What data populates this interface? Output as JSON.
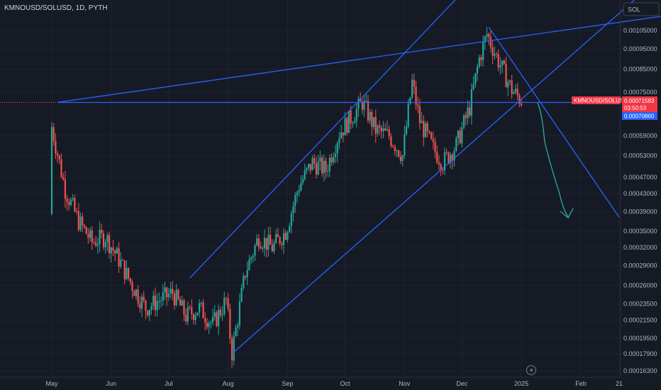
{
  "chart_title": "KMNOUSD/SOLUSD, 1D, PYTH",
  "currency_button": "SOL",
  "price_tag": {
    "symbol": "KMNOUSD/SOLUSD",
    "price": "0.00071583",
    "countdown": "03:50:53",
    "line_value": "0.00070860"
  },
  "x_axis_labels": [
    "May",
    "Jun",
    "Jul",
    "Aug",
    "Sep",
    "Oct",
    "Nov",
    "Dec",
    "2025",
    "Feb",
    "21"
  ],
  "y_axis_labels": [
    "0.00105000",
    "0.00095000",
    "0.00085000",
    "0.00075000",
    "0.00059000",
    "0.00053000",
    "0.00047000",
    "0.00043000",
    "0.00039000",
    "0.00035000",
    "0.00032000",
    "0.00029000",
    "0.00026000",
    "0.00023500",
    "0.00021500",
    "0.00019500",
    "0.00017900",
    "0.00016300"
  ],
  "colors": {
    "background": "#161a25",
    "up": "#26a69a",
    "down": "#ef5350",
    "trendline": "#2962ff",
    "drawing": "#26a69a",
    "price_label": "#f23645",
    "line_label": "#2962ff"
  },
  "icons": {
    "watermark": "lightning-bolt-icon"
  },
  "chart_data": {
    "type": "candlestick",
    "title": "KMNOUSD/SOLUSD, 1D, PYTH",
    "y_scale": "log",
    "ylim": [
      0.000158,
      0.00114
    ],
    "x": [
      "2024-05-01",
      "2024-05-08",
      "2024-05-15",
      "2024-05-22",
      "2024-05-29",
      "2024-06-05",
      "2024-06-12",
      "2024-06-19",
      "2024-06-26",
      "2024-07-03",
      "2024-07-10",
      "2024-07-17",
      "2024-07-24",
      "2024-07-31",
      "2024-08-03",
      "2024-08-10",
      "2024-08-17",
      "2024-08-24",
      "2024-08-31",
      "2024-09-07",
      "2024-09-14",
      "2024-09-21",
      "2024-09-28",
      "2024-10-05",
      "2024-10-10",
      "2024-10-17",
      "2024-10-24",
      "2024-10-31",
      "2024-11-05",
      "2024-11-09",
      "2024-11-16",
      "2024-11-21",
      "2024-11-28",
      "2024-12-05",
      "2024-12-10",
      "2024-12-14",
      "2024-12-20",
      "2024-12-27",
      "2025-01-01"
    ],
    "close": [
      0.00062,
      0.00044,
      0.00037,
      0.00033,
      0.00034,
      0.0003,
      0.00026,
      0.00023,
      0.00024,
      0.00025,
      0.00022,
      0.00023,
      0.00021,
      0.00024,
      0.00018,
      0.00028,
      0.00034,
      0.00032,
      0.00035,
      0.00045,
      0.00051,
      0.00049,
      0.0006,
      0.00066,
      0.00071,
      0.00061,
      0.00059,
      0.00053,
      0.00079,
      0.00064,
      0.00055,
      0.00051,
      0.00056,
      0.00069,
      0.0009,
      0.00103,
      0.00089,
      0.00076,
      0.00071583
    ],
    "series": [
      {
        "name": "KMNOUSD/SOLUSD"
      }
    ],
    "annotations": [
      {
        "type": "horizontal_line",
        "value": 0.0007086
      },
      {
        "type": "ascending_channel",
        "support": [
          [
            "2024-08-03",
            0.000179
          ],
          [
            "2024-11-21",
            0.000494
          ]
        ],
        "resistance": [
          [
            "2024-07-12",
            0.000271
          ],
          [
            "2024-10-10",
            0.000729
          ]
        ]
      },
      {
        "type": "trendline",
        "from": [
          "2024-05-04",
          0.000709
        ],
        "to": [
          "2024-11-05",
          0.000935
        ]
      },
      {
        "type": "trendline",
        "from": [
          "2024-12-15",
          0.00107
        ],
        "to": [
          "2025-02-21",
          0.000378
        ]
      },
      {
        "type": "freehand_arrow",
        "direction": "down",
        "target_value": 0.00038
      }
    ]
  }
}
